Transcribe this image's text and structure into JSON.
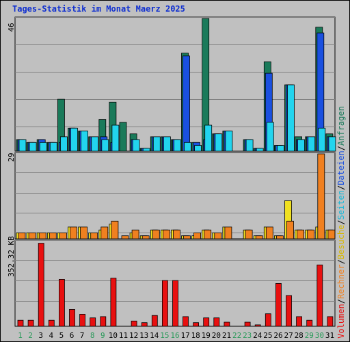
{
  "chart_data": [
    {
      "type": "bar",
      "title": "Tages-Statistik im Monat Maerz 2025",
      "ymax_label": "46",
      "ylim": [
        0,
        46
      ],
      "categories": [
        "1",
        "2",
        "3",
        "4",
        "5",
        "6",
        "7",
        "8",
        "9",
        "10",
        "11",
        "12",
        "13",
        "14",
        "15",
        "16",
        "17",
        "18",
        "19",
        "20",
        "21",
        "22",
        "23",
        "24",
        "25",
        "26",
        "27",
        "28",
        "29",
        "30",
        "31"
      ],
      "weekend_days": [
        "1",
        "2",
        "8",
        "9",
        "15",
        "16",
        "22",
        "23",
        "29",
        "30"
      ],
      "series": [
        {
          "name": "Anfragen",
          "color": "#1a7a5a",
          "values": [
            4,
            3,
            4,
            3,
            18,
            8,
            7,
            5,
            11,
            17,
            10,
            6,
            1,
            5,
            5,
            4,
            34,
            3,
            46,
            6,
            7,
            0,
            4,
            1,
            31,
            2,
            23,
            5,
            5,
            43,
            6
          ]
        },
        {
          "name": "Dateien",
          "color": "#1a50e0",
          "values": [
            4,
            3,
            4,
            3,
            3,
            8,
            7,
            5,
            5,
            3,
            0,
            4,
            1,
            5,
            5,
            4,
            33,
            3,
            4,
            6,
            7,
            0,
            4,
            1,
            27,
            2,
            23,
            4,
            5,
            41,
            5
          ]
        },
        {
          "name": "Seiten",
          "color": "#22d4ee",
          "values": [
            4,
            3,
            3,
            3,
            5,
            8,
            7,
            5,
            4,
            9,
            0,
            4,
            1,
            5,
            5,
            4,
            3,
            2,
            9,
            6,
            7,
            0,
            4,
            1,
            10,
            2,
            23,
            4,
            5,
            8,
            5
          ]
        }
      ],
      "legend": [
        "Anfragen",
        "Dateien",
        "Seiten"
      ]
    },
    {
      "type": "bar",
      "ymax_label": "29",
      "ylim": [
        0,
        29
      ],
      "categories": [
        "1",
        "2",
        "3",
        "4",
        "5",
        "6",
        "7",
        "8",
        "9",
        "10",
        "11",
        "12",
        "13",
        "14",
        "15",
        "16",
        "17",
        "18",
        "19",
        "20",
        "21",
        "22",
        "23",
        "24",
        "25",
        "26",
        "27",
        "28",
        "29",
        "30",
        "31"
      ],
      "series": [
        {
          "name": "Besuche",
          "color": "#f0e020",
          "values": [
            2,
            2,
            2,
            2,
            2,
            4,
            4,
            2,
            3,
            5,
            0,
            2,
            1,
            3,
            3,
            3,
            1,
            1,
            3,
            2,
            4,
            0,
            3,
            1,
            4,
            1,
            13,
            3,
            3,
            4,
            3
          ]
        },
        {
          "name": "Rechner",
          "color": "#f08020",
          "values": [
            2,
            2,
            2,
            2,
            2,
            4,
            4,
            2,
            4,
            6,
            1,
            3,
            1,
            3,
            3,
            3,
            1,
            2,
            3,
            2,
            4,
            0,
            3,
            1,
            4,
            1,
            6,
            3,
            3,
            29,
            3
          ]
        }
      ],
      "legend": [
        "Besuche",
        "Rechner"
      ]
    },
    {
      "type": "bar",
      "ymax_label": "352.32 KB",
      "ylim": [
        0,
        352.32
      ],
      "categories": [
        "1",
        "2",
        "3",
        "4",
        "5",
        "6",
        "7",
        "8",
        "9",
        "10",
        "11",
        "12",
        "13",
        "14",
        "15",
        "16",
        "17",
        "18",
        "19",
        "20",
        "21",
        "22",
        "23",
        "24",
        "25",
        "26",
        "27",
        "28",
        "29",
        "30",
        "31"
      ],
      "series": [
        {
          "name": "Volumen",
          "color": "#e81010",
          "values": [
            25,
            25,
            345,
            25,
            195,
            70,
            50,
            35,
            40,
            200,
            0,
            22,
            15,
            45,
            190,
            190,
            40,
            15,
            35,
            35,
            17,
            0,
            17,
            6,
            52,
            178,
            128,
            40,
            25,
            255,
            40
          ]
        }
      ],
      "legend": [
        "Volumen"
      ]
    }
  ],
  "legend_separator": "/"
}
